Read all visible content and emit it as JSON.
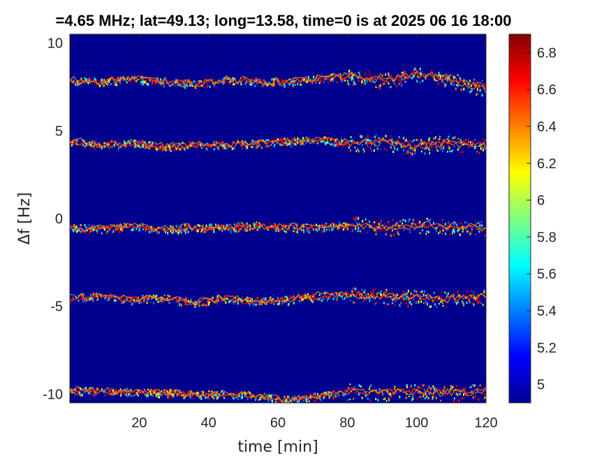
{
  "figure": {
    "title": "=4.65 MHz;  lat=49.13; long=13.58, time=0 is at 2025 06 16 18:00"
  },
  "chart_data": {
    "type": "heatmap",
    "title": "=4.65 MHz;  lat=49.13; long=13.58, time=0 is at 2025 06 16 18:00",
    "xlabel": "time [min]",
    "ylabel": "Δf [Hz]",
    "xlim": [
      0,
      120
    ],
    "ylim": [
      -10.5,
      10.5
    ],
    "xticks": [
      20,
      40,
      60,
      80,
      100,
      120
    ],
    "xtick_labels": [
      "20",
      "40",
      "60",
      "80",
      "100",
      "120"
    ],
    "yticks": [
      10,
      5,
      0,
      -5,
      -10
    ],
    "ytick_labels": [
      "10",
      "5",
      "0",
      "-5",
      "-10"
    ],
    "colorbar": {
      "range": [
        4.9,
        6.9
      ],
      "ticks": [
        6.8,
        6.6,
        6.4,
        6.2,
        6.0,
        5.8,
        5.6,
        5.4,
        5.2,
        5.0
      ],
      "tick_labels": [
        "6.8",
        "6.6",
        "6.4",
        "6.2",
        "6",
        "5.8",
        "5.6",
        "5.4",
        "5.2",
        "5"
      ],
      "colormap": "jet"
    },
    "background_color": "#00008f",
    "traces": [
      {
        "name": "",
        "y": [
          7.9,
          7.8,
          8.0,
          7.8,
          7.7,
          7.9,
          7.8,
          7.8,
          8.0,
          8.1,
          7.9,
          8.2,
          8.0,
          7.4
        ]
      },
      {
        "name": "",
        "y": [
          4.4,
          4.2,
          4.3,
          4.1,
          4.2,
          4.2,
          4.3,
          4.4,
          4.5,
          4.3,
          4.4,
          4.1,
          4.3,
          4.2
        ]
      },
      {
        "name": "",
        "y": [
          -0.5,
          -0.6,
          -0.4,
          -0.6,
          -0.5,
          -0.5,
          -0.4,
          -0.5,
          -0.5,
          -0.3,
          -0.5,
          -0.4,
          -0.4,
          -0.5
        ]
      },
      {
        "name": "",
        "y": [
          -4.5,
          -4.4,
          -4.6,
          -4.5,
          -4.8,
          -4.5,
          -4.7,
          -4.6,
          -4.4,
          -4.3,
          -4.4,
          -4.5,
          -4.6,
          -4.4
        ]
      },
      {
        "name": "",
        "y": [
          -9.8,
          -9.8,
          -9.9,
          -9.9,
          -10.0,
          -10.0,
          -10.1,
          -10.3,
          -10.1,
          -9.8,
          -9.9,
          -9.8,
          -9.9,
          -9.8
        ]
      }
    ],
    "trace_x": [
      0,
      9,
      18,
      27,
      36,
      45,
      54,
      63,
      72,
      81,
      90,
      99,
      108,
      120
    ]
  }
}
